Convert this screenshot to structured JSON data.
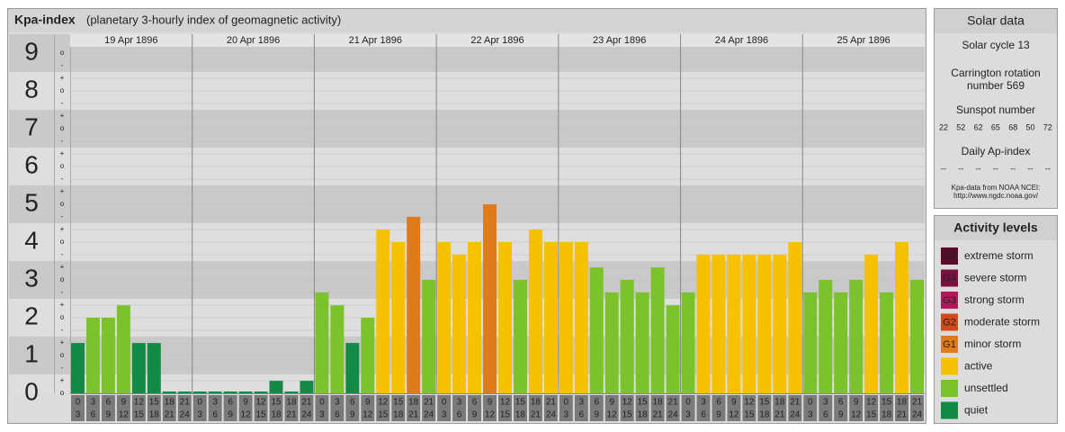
{
  "chart_data": {
    "type": "bar",
    "title": "Kpa-index",
    "subtitle": "(planetary 3-hourly index of geomagnetic activity)",
    "ylim": [
      0,
      9.5
    ],
    "yticks": [
      0,
      1,
      2,
      3,
      4,
      5,
      6,
      7,
      8,
      9
    ],
    "minor_labels": [
      "-",
      "o",
      "+"
    ],
    "hours": [
      [
        "0",
        "3"
      ],
      [
        "3",
        "6"
      ],
      [
        "6",
        "9"
      ],
      [
        "9",
        "12"
      ],
      [
        "12",
        "15"
      ],
      [
        "15",
        "18"
      ],
      [
        "18",
        "21"
      ],
      [
        "21",
        "24"
      ]
    ],
    "days": [
      {
        "date": "19 Apr 1896",
        "values": [
          1.33,
          2,
          2,
          2.33,
          1.33,
          1.33,
          0,
          0
        ],
        "colors": [
          "#138a45",
          "#7cc22d",
          "#7cc22d",
          "#7cc22d",
          "#138a45",
          "#138a45",
          "#138a45",
          "#138a45"
        ]
      },
      {
        "date": "20 Apr 1896",
        "values": [
          0,
          0,
          0,
          0,
          0,
          0.33,
          0,
          0.33
        ],
        "colors": [
          "#138a45",
          "#138a45",
          "#138a45",
          "#138a45",
          "#138a45",
          "#138a45",
          "#138a45",
          "#138a45"
        ]
      },
      {
        "date": "21 Apr 1896",
        "values": [
          2.67,
          2.33,
          1.33,
          2,
          4.33,
          4,
          4.67,
          3
        ],
        "colors": [
          "#7cc22d",
          "#7cc22d",
          "#138a45",
          "#7cc22d",
          "#f5c100",
          "#f5c100",
          "#e07b1b",
          "#7cc22d"
        ]
      },
      {
        "date": "22 Apr 1896",
        "values": [
          4,
          3.67,
          4,
          5,
          4,
          3,
          4.33,
          4
        ],
        "colors": [
          "#f5c100",
          "#f5c100",
          "#f5c100",
          "#e07b1b",
          "#f5c100",
          "#7cc22d",
          "#f5c100",
          "#f5c100"
        ]
      },
      {
        "date": "23 Apr 1896",
        "values": [
          4,
          4,
          3.33,
          2.67,
          3,
          2.67,
          3.33,
          2.33
        ],
        "colors": [
          "#f5c100",
          "#f5c100",
          "#7cc22d",
          "#7cc22d",
          "#7cc22d",
          "#7cc22d",
          "#7cc22d",
          "#7cc22d"
        ]
      },
      {
        "date": "24 Apr 1896",
        "values": [
          2.67,
          3.67,
          3.67,
          3.67,
          3.67,
          3.67,
          3.67,
          4
        ],
        "colors": [
          "#7cc22d",
          "#f5c100",
          "#f5c100",
          "#f5c100",
          "#f5c100",
          "#f5c100",
          "#f5c100",
          "#f5c100"
        ]
      },
      {
        "date": "25 Apr 1896",
        "values": [
          2.67,
          3,
          2.67,
          3,
          3.67,
          2.67,
          4,
          3
        ],
        "colors": [
          "#7cc22d",
          "#7cc22d",
          "#7cc22d",
          "#7cc22d",
          "#f5c100",
          "#7cc22d",
          "#f5c100",
          "#7cc22d"
        ]
      }
    ]
  },
  "solar": {
    "title": "Solar data",
    "cycle": "Solar cycle 13",
    "rotation": [
      "Carrington rotation",
      "number 569"
    ],
    "sunspot_title": "Sunspot number",
    "sunspots": [
      "22",
      "52",
      "62",
      "65",
      "68",
      "50",
      "72"
    ],
    "ap_title": "Daily Ap-index",
    "ap": [
      "--",
      "--",
      "--",
      "--",
      "--",
      "--",
      "--"
    ],
    "source": [
      "Kpa-data from NOAA NCEI:",
      "http://www.ngdc.noaa.gov/"
    ]
  },
  "levels": {
    "title": "Activity levels",
    "items": [
      {
        "code": "G5",
        "label": "extreme storm",
        "color": "#5a0a2a"
      },
      {
        "code": "G4",
        "label": "severe storm",
        "color": "#7a1040"
      },
      {
        "code": "G3",
        "label": "strong storm",
        "color": "#b0185a"
      },
      {
        "code": "G2",
        "label": "moderate storm",
        "color": "#d24a1c"
      },
      {
        "code": "G1",
        "label": "minor storm",
        "color": "#e07b1b"
      },
      {
        "code": null,
        "label": "active",
        "color": "#f5c100"
      },
      {
        "code": null,
        "label": "unsettled",
        "color": "#7cc22d"
      },
      {
        "code": null,
        "label": "quiet",
        "color": "#138a45"
      }
    ]
  }
}
